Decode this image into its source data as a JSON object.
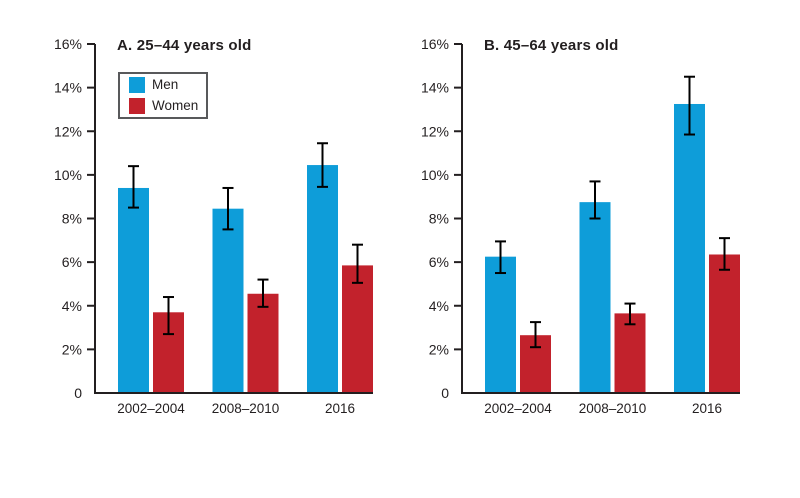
{
  "figure": {
    "background": "#ffffff"
  },
  "colors": {
    "men": "#0E9DD9",
    "women": "#C2222C",
    "axis": "#231F20",
    "error_bar": "#000000",
    "text": "#231F20",
    "legend_border": "#58595B"
  },
  "chart_data": [
    {
      "type": "bar",
      "title": "A. 25–44 years old",
      "categories": [
        "2002–2004",
        "2008–2010",
        "2016"
      ],
      "series": [
        {
          "name": "Men",
          "color_key": "men",
          "values": [
            9.4,
            8.45,
            10.45
          ],
          "error_low": [
            8.5,
            7.5,
            9.45
          ],
          "error_high": [
            10.4,
            9.4,
            11.45
          ]
        },
        {
          "name": "Women",
          "color_key": "women",
          "values": [
            3.7,
            4.55,
            5.85
          ],
          "error_low": [
            2.7,
            3.95,
            5.05
          ],
          "error_high": [
            4.4,
            5.2,
            6.8
          ]
        }
      ],
      "xlabel": "",
      "ylabel": "",
      "ylim": [
        0,
        16
      ],
      "ytick_step": 2,
      "ytick_labels": [
        "0",
        "2%",
        "4%",
        "6%",
        "8%",
        "10%",
        "12%",
        "14%",
        "16%"
      ],
      "grid": false,
      "error_bars": true,
      "legend_position": "upper-left-inside"
    },
    {
      "type": "bar",
      "title": "B. 45–64 years old",
      "categories": [
        "2002–2004",
        "2008–2010",
        "2016"
      ],
      "series": [
        {
          "name": "Men",
          "color_key": "men",
          "values": [
            6.25,
            8.75,
            13.25
          ],
          "error_low": [
            5.5,
            8.0,
            11.85
          ],
          "error_high": [
            6.95,
            9.7,
            14.5
          ]
        },
        {
          "name": "Women",
          "color_key": "women",
          "values": [
            2.65,
            3.65,
            6.35
          ],
          "error_low": [
            2.1,
            3.15,
            5.65
          ],
          "error_high": [
            3.25,
            4.1,
            7.1
          ]
        }
      ],
      "xlabel": "",
      "ylabel": "",
      "ylim": [
        0,
        16
      ],
      "ytick_step": 2,
      "ytick_labels": [
        "0",
        "2%",
        "4%",
        "6%",
        "8%",
        "10%",
        "12%",
        "14%",
        "16%"
      ],
      "grid": false,
      "error_bars": true,
      "legend_position": "none"
    }
  ]
}
